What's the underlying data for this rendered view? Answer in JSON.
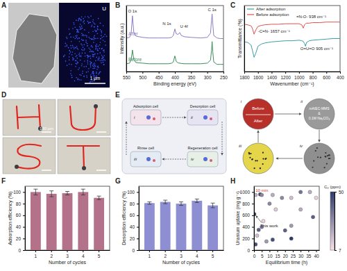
{
  "panels": {
    "a": {
      "panel_label": "A",
      "element": "U",
      "scale_bar": "1 μm"
    },
    "d": {
      "panel_label": "D",
      "scale_bar": "100 μm"
    },
    "e": {
      "panel_label": "E",
      "cells": [
        "Adsorption cell",
        "Desorption cell",
        "Rinse cell",
        "Regeneration cell"
      ],
      "steps": [
        "i",
        "ii",
        "iii",
        "iv"
      ],
      "states": [
        "Before",
        "After"
      ],
      "solution": [
        "mAIEC-MMS",
        "&",
        "0.1M Na₂CO₃"
      ]
    }
  },
  "chart_data": [
    {
      "panel_label": "B",
      "type": "line",
      "x_label": "Binding energy (eV)",
      "y_label": "Intensity (a.u.)",
      "xlim": [
        550,
        250
      ],
      "xticks": [
        550,
        500,
        450,
        400,
        350,
        300,
        250
      ],
      "ylim": [
        0,
        11
      ],
      "tick_labels": "x",
      "x": [
        550,
        540,
        535,
        531,
        527,
        520,
        500,
        480,
        450,
        420,
        410,
        405,
        400,
        396,
        390,
        385,
        380,
        370,
        350,
        320,
        300,
        290,
        287,
        285,
        283,
        280,
        270,
        260,
        250
      ],
      "series": [
        {
          "name": "After",
          "color": "#8e7cc3",
          "values": [
            5.6,
            5.7,
            6.4,
            9.3,
            6.6,
            5.9,
            5.7,
            5.6,
            5.6,
            5.6,
            5.7,
            6.0,
            7.1,
            6.3,
            6.2,
            6.5,
            6.0,
            5.8,
            5.7,
            5.6,
            5.7,
            6.4,
            8.5,
            9.6,
            8.0,
            6.0,
            5.6,
            5.5,
            5.5
          ]
        },
        {
          "name": "Before",
          "color": "#3c8d5a",
          "values": [
            1.3,
            1.4,
            2.0,
            3.6,
            2.0,
            1.5,
            1.4,
            1.3,
            1.3,
            1.3,
            1.4,
            1.6,
            2.6,
            1.7,
            1.45,
            1.4,
            1.35,
            1.3,
            1.3,
            1.3,
            1.4,
            1.9,
            3.5,
            5.0,
            3.3,
            1.6,
            1.2,
            1.2,
            1.2
          ]
        }
      ],
      "annotations": [
        {
          "text": "O 1s",
          "x": 531,
          "y": 9.9
        },
        {
          "text": "N 1s",
          "x": 425,
          "y": 7.8
        },
        {
          "text": "U 4f",
          "x": 372,
          "y": 7.3
        },
        {
          "text": "C 1s",
          "x": 285,
          "y": 10.1
        }
      ]
    },
    {
      "panel_label": "C",
      "type": "line",
      "x_label": "Wavenumber (cm⁻¹)",
      "y_label": "Transmittance (%)",
      "xlim": [
        1800,
        400
      ],
      "xticks": [
        1800,
        1600,
        1400,
        1200,
        1000,
        800,
        600,
        400
      ],
      "ylim": [
        0,
        12
      ],
      "tick_labels": "x",
      "legend": "top",
      "x": [
        1800,
        1750,
        1700,
        1680,
        1657,
        1630,
        1600,
        1550,
        1500,
        1400,
        1300,
        1200,
        1100,
        1000,
        960,
        938,
        920,
        905,
        890,
        850,
        800,
        700,
        600,
        500,
        400
      ],
      "series": [
        {
          "name": "After adsorption",
          "color": "#3a9ea5",
          "values": [
            5.4,
            5.3,
            4.8,
            3.8,
            2.6,
            3.4,
            4.6,
            5.0,
            5.2,
            5.4,
            5.5,
            5.6,
            5.6,
            5.7,
            5.6,
            5.5,
            5.1,
            4.6,
            5.3,
            5.6,
            5.7,
            5.8,
            5.9,
            6.0,
            6.0
          ]
        },
        {
          "name": "Before adsorption",
          "color": "#e0504f",
          "values": [
            8.6,
            8.5,
            8.3,
            7.8,
            6.8,
            7.6,
            8.2,
            8.4,
            8.5,
            8.6,
            8.6,
            8.7,
            8.7,
            8.7,
            8.5,
            7.9,
            8.5,
            8.7,
            8.8,
            8.8,
            8.9,
            8.9,
            9.0,
            9.0,
            9.0
          ]
        }
      ],
      "annotations": [
        {
          "text": "=N-O- 938 cm⁻¹",
          "x": 1040,
          "y": 9.7
        },
        {
          "text": "-C=N- 1657 cm⁻¹",
          "x": 1600,
          "y": 7.1
        },
        {
          "text": "O=U=O 905 cm⁻¹",
          "x": 980,
          "y": 3.9
        }
      ]
    },
    {
      "panel_label": "F",
      "type": "bar",
      "x_label": "Number of cycles",
      "y_label": "Adsorption efficiency (%)",
      "categories": [
        "1",
        "2",
        "3",
        "4",
        "5"
      ],
      "values": [
        100,
        97,
        98,
        100,
        90
      ],
      "errors": [
        5,
        5,
        3,
        5,
        3
      ],
      "color": "#b3728a",
      "ylim": [
        0,
        110
      ],
      "yticks": [
        0,
        20,
        40,
        60,
        80,
        100
      ]
    },
    {
      "panel_label": "G",
      "type": "bar",
      "x_label": "Number of cycles",
      "y_label": "Desorption efficiency (%)",
      "categories": [
        "1",
        "2",
        "3",
        "4",
        "5"
      ],
      "values": [
        81,
        83,
        80,
        85,
        77
      ],
      "errors": [
        2,
        3,
        3,
        3,
        4
      ],
      "color": "#8d8fd2",
      "ylim": [
        0,
        110
      ],
      "yticks": [
        0,
        20,
        40,
        60,
        80,
        100
      ]
    },
    {
      "panel_label": "H",
      "type": "scatter",
      "x_label": "Equilibrium time (h)",
      "y_label": "Uranium uptake (mg g⁻¹)",
      "xlim": [
        0,
        42
      ],
      "xticks": [
        0,
        5,
        10,
        15,
        20,
        25,
        30,
        35,
        40
      ],
      "ylim": [
        0,
        1100
      ],
      "yticks": [
        0,
        200,
        400,
        600,
        800,
        1000
      ],
      "x": [
        0.17,
        1,
        2,
        3,
        4,
        5,
        6,
        8,
        10,
        12,
        12,
        14,
        18,
        20,
        24,
        24,
        30,
        30,
        36,
        38,
        40,
        24,
        5,
        1
      ],
      "values": [
        620,
        950,
        250,
        350,
        960,
        400,
        500,
        150,
        800,
        950,
        180,
        700,
        900,
        340,
        900,
        420,
        1000,
        700,
        1000,
        570,
        900,
        200,
        950,
        100
      ],
      "c0": [
        50,
        20,
        15,
        40,
        45,
        35,
        10,
        25,
        30,
        20,
        45,
        12,
        30,
        40,
        15,
        25,
        35,
        20,
        20,
        40,
        10,
        50,
        30,
        45
      ],
      "colorbar": {
        "label": "C₀ (ppm)",
        "range": [
          7,
          50
        ],
        "ticks": [
          7,
          50
        ]
      },
      "annotations": [
        {
          "text": "10 min",
          "x": 1,
          "y": 1010
        },
        {
          "text": "This work",
          "x": 4,
          "y": 400
        }
      ]
    }
  ]
}
